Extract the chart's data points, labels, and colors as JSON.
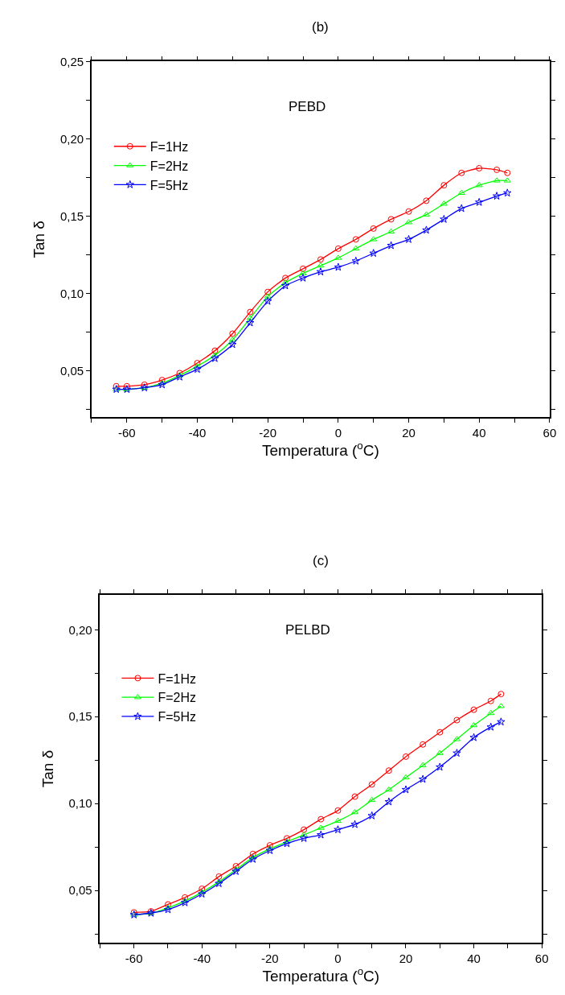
{
  "chart_data": [
    {
      "type": "line",
      "title": "(b)",
      "xlabel": "Temperatura ($^{o}$C)",
      "ylabel": "Tan δ",
      "annotations": [
        "PEBD"
      ],
      "x": [
        -63,
        -60,
        -55,
        -50,
        -45,
        -40,
        -35,
        -30,
        -25,
        -20,
        -15,
        -10,
        -5,
        0,
        5,
        10,
        15,
        20,
        25,
        30,
        35,
        40,
        45,
        48
      ],
      "series": [
        {
          "name": "F=1Hz",
          "color": "#ff0000",
          "marker": "circle",
          "values": [
            0.04,
            0.04,
            0.041,
            0.044,
            0.0485,
            0.055,
            0.063,
            0.074,
            0.088,
            0.101,
            0.11,
            0.116,
            0.122,
            0.129,
            0.135,
            0.142,
            0.148,
            0.153,
            0.16,
            0.17,
            0.178,
            0.181,
            0.18,
            0.178
          ]
        },
        {
          "name": "F=2Hz",
          "color": "#00ff00",
          "marker": "triangle",
          "values": [
            0.038,
            0.038,
            0.039,
            0.042,
            0.047,
            0.053,
            0.06,
            0.07,
            0.084,
            0.098,
            0.107,
            0.113,
            0.118,
            0.123,
            0.129,
            0.135,
            0.14,
            0.146,
            0.151,
            0.158,
            0.165,
            0.17,
            0.173,
            0.173
          ]
        },
        {
          "name": "F=5Hz",
          "color": "#0000ff",
          "marker": "star",
          "values": [
            0.038,
            0.038,
            0.039,
            0.041,
            0.046,
            0.051,
            0.058,
            0.067,
            0.081,
            0.095,
            0.105,
            0.11,
            0.114,
            0.117,
            0.121,
            0.126,
            0.131,
            0.135,
            0.141,
            0.148,
            0.155,
            0.159,
            0.163,
            0.165
          ]
        }
      ],
      "xlim": [
        -70,
        60
      ],
      "xticks": [
        {
          "value": -70,
          "label": null
        },
        -60,
        {
          "value": -50,
          "label": null
        },
        -40,
        {
          "value": -30,
          "label": null
        },
        -20,
        {
          "value": -10,
          "label": null
        },
        0,
        {
          "value": 10,
          "label": null
        },
        20,
        {
          "value": 30,
          "label": null
        },
        40,
        {
          "value": 50,
          "label": null
        },
        60
      ],
      "ylim": [
        0.02,
        0.25
      ],
      "yticks": [
        {
          "value": 0.025,
          "label": null
        },
        {
          "value": 0.05,
          "label": "0,05"
        },
        {
          "value": 0.075,
          "label": null
        },
        {
          "value": 0.1,
          "label": "0,10"
        },
        {
          "value": 0.125,
          "label": null
        },
        {
          "value": 0.15,
          "label": "0,15"
        },
        {
          "value": 0.175,
          "label": null
        },
        {
          "value": 0.2,
          "label": "0,20"
        },
        {
          "value": 0.225,
          "label": null
        },
        {
          "value": 0.25,
          "label": "0,25"
        }
      ],
      "legend": "top left",
      "line_style": "solid"
    },
    {
      "type": "line",
      "title": "(c)",
      "xlabel": "Temperatura ($^{o}$C)",
      "ylabel": "Tan δ",
      "annotations": [
        "PELBD"
      ],
      "x": [
        -60,
        -55,
        -50,
        -45,
        -40,
        -35,
        -30,
        -25,
        -20,
        -15,
        -10,
        -5,
        0,
        5,
        10,
        15,
        20,
        25,
        30,
        35,
        40,
        45,
        48
      ],
      "series": [
        {
          "name": "F=1Hz",
          "color": "#ff0000",
          "marker": "circle",
          "values": [
            0.0374,
            0.038,
            0.042,
            0.046,
            0.051,
            0.058,
            0.064,
            0.071,
            0.076,
            0.08,
            0.085,
            0.091,
            0.096,
            0.104,
            0.111,
            0.119,
            0.127,
            0.134,
            0.141,
            0.148,
            0.154,
            0.159,
            0.163
          ]
        },
        {
          "name": "F=2Hz",
          "color": "#00ff00",
          "marker": "triangle",
          "values": [
            0.036,
            0.037,
            0.04,
            0.044,
            0.049,
            0.055,
            0.062,
            0.069,
            0.074,
            0.078,
            0.082,
            0.086,
            0.09,
            0.095,
            0.102,
            0.108,
            0.115,
            0.122,
            0.129,
            0.137,
            0.145,
            0.152,
            0.156
          ]
        },
        {
          "name": "F=5Hz",
          "color": "#0000ff",
          "marker": "star",
          "values": [
            0.036,
            0.037,
            0.039,
            0.043,
            0.048,
            0.054,
            0.061,
            0.068,
            0.073,
            0.077,
            0.08,
            0.082,
            0.085,
            0.088,
            0.093,
            0.101,
            0.108,
            0.114,
            0.121,
            0.129,
            0.138,
            0.144,
            0.147
          ]
        }
      ],
      "xlim": [
        -70,
        60
      ],
      "xticks": [
        {
          "value": -70,
          "label": null
        },
        -60,
        {
          "value": -50,
          "label": null
        },
        -40,
        {
          "value": -30,
          "label": null
        },
        -20,
        {
          "value": -10,
          "label": null
        },
        0,
        {
          "value": 10,
          "label": null
        },
        20,
        {
          "value": 30,
          "label": null
        },
        40,
        {
          "value": 50,
          "label": null
        },
        60
      ],
      "ylim": [
        0.02,
        0.22
      ],
      "yticks": [
        {
          "value": 0.025,
          "label": null
        },
        {
          "value": 0.05,
          "label": "0,05"
        },
        {
          "value": 0.075,
          "label": null
        },
        {
          "value": 0.1,
          "label": "0,10"
        },
        {
          "value": 0.125,
          "label": null
        },
        {
          "value": 0.15,
          "label": "0,15"
        },
        {
          "value": 0.175,
          "label": null
        },
        {
          "value": 0.2,
          "label": "0,20"
        }
      ],
      "legend": "top left",
      "line_style": "solid"
    }
  ]
}
